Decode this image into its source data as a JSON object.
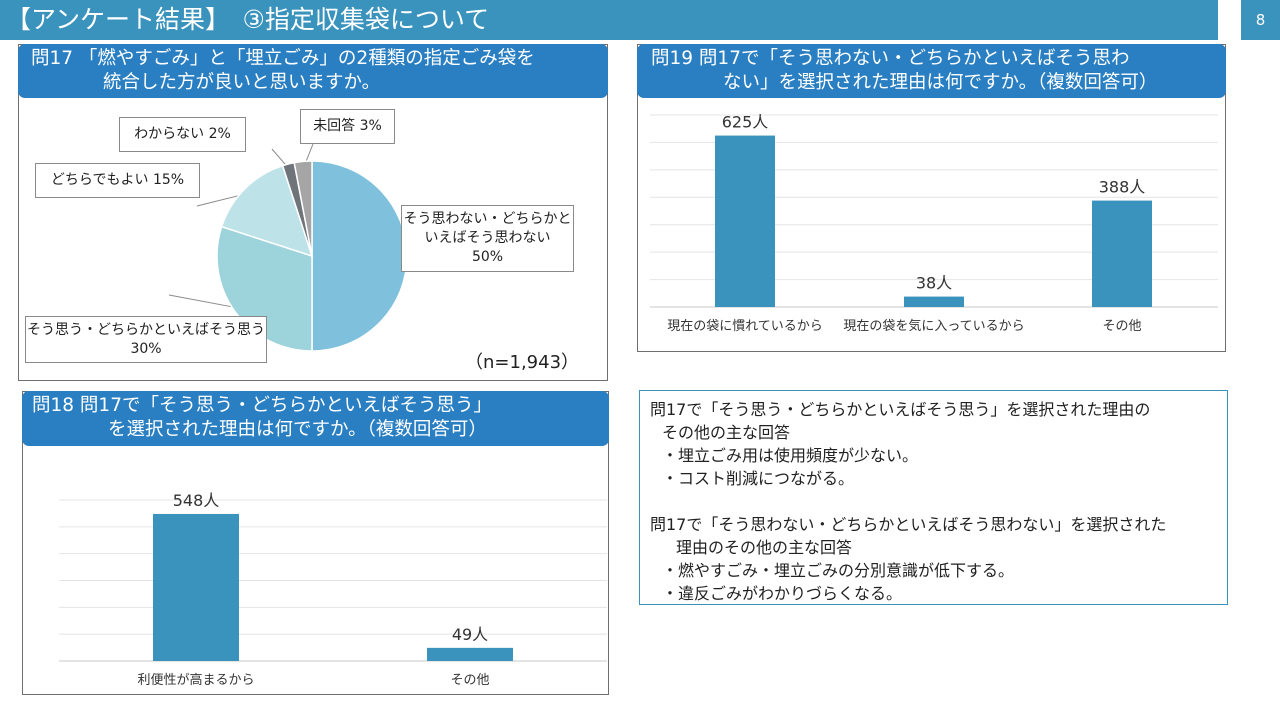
{
  "header": {
    "title": "【アンケート結果】　③指定収集袋について",
    "page_number": "8"
  },
  "q17": {
    "header_line1": "問17 「燃やすごみ」と「埋立ごみ」の2種類の指定ごみ袋を",
    "header_line2": "統合した方が良いと思いますか。",
    "n_label": "（n=1,943）",
    "callouts": {
      "no_line1": "そう思わない・どちらかと",
      "no_line2": "いえばそう思わない",
      "no_line3": "50%",
      "yes_line1": "そう思う・どちらかといえばそう思う",
      "yes_line2": "30%",
      "either": "どちらでもよい 15%",
      "unknown": "わからない 2%",
      "noanswer": "未回答 3%"
    }
  },
  "q18": {
    "header_line1": "問18 問17で「そう思う・どちらかといえばそう思う」",
    "header_line2": "を選択された理由は何ですか。（複数回答可）"
  },
  "q19": {
    "header_line1": "問19 問17で「そう思わない・どちらかといえばそう思わ",
    "header_line2": "ない」を選択された理由は何ですか。（複数回答可）"
  },
  "notes": {
    "p1_line1": "問17で「そう思う・どちらかといえばそう思う」を選択された理由の",
    "p1_line2": "その他の主な回答",
    "p1_item1": "・埋立ごみ用は使用頻度が少ない。",
    "p1_item2": "・コスト削減につながる。",
    "p2_line1": "問17で「そう思わない・どちらかといえばそう思わない」を選択された",
    "p2_line2": "理由のその他の主な回答",
    "p2_item1": "・燃やすごみ・埋立ごみの分別意識が低下する。",
    "p2_item2": "・違反ごみがわかりづらくなる。"
  },
  "chart_data": [
    {
      "type": "pie",
      "categories": [
        "そう思わない・どちらかといえばそう思わない",
        "そう思う・どちらかといえばそう思う",
        "どちらでもよい",
        "わからない",
        "未回答"
      ],
      "values": [
        50,
        30,
        15,
        2,
        3
      ],
      "unit": "%",
      "n": 1943,
      "colors": [
        "#7fc1dd",
        "#9dd3da",
        "#bde2e8",
        "#6e7479",
        "#a5a5a5"
      ]
    },
    {
      "type": "bar",
      "categories": [
        "利便性が高まるから",
        "その他"
      ],
      "values": [
        548,
        49
      ],
      "data_labels": [
        "548人",
        "49人"
      ],
      "ylim": [
        0,
        600
      ],
      "grid": true,
      "color": "#3a93bc"
    },
    {
      "type": "bar",
      "categories": [
        "現在の袋に慣れているから",
        "現在の袋を気に入っているから",
        "その他"
      ],
      "values": [
        625,
        38,
        388
      ],
      "data_labels": [
        "625人",
        "38人",
        "388人"
      ],
      "ylim": [
        0,
        700
      ],
      "grid": true,
      "color": "#3a93bc"
    }
  ]
}
